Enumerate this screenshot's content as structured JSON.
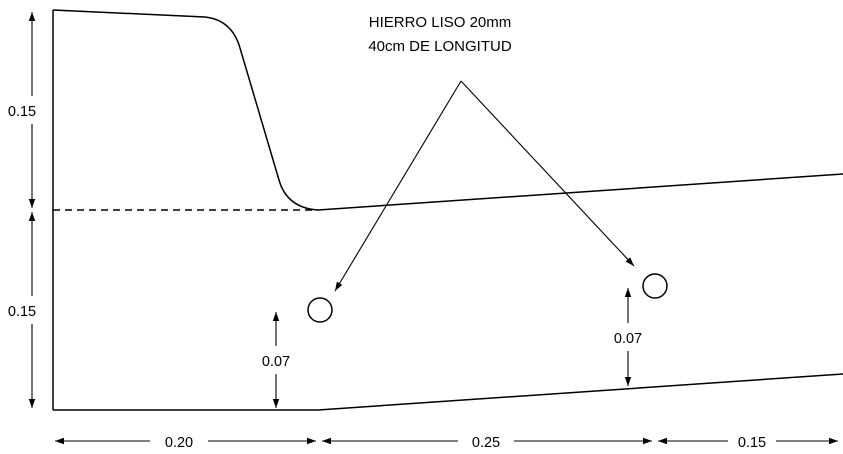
{
  "note": {
    "line1": "HIERRO LISO 20mm",
    "line2": "40cm DE LONGITUD"
  },
  "dimensions": {
    "left_upper": "0.15",
    "left_lower": "0.15",
    "cover_left": "0.07",
    "cover_right": "0.07",
    "bottom_1": "0.20",
    "bottom_2": "0.25",
    "bottom_3": "0.15"
  }
}
